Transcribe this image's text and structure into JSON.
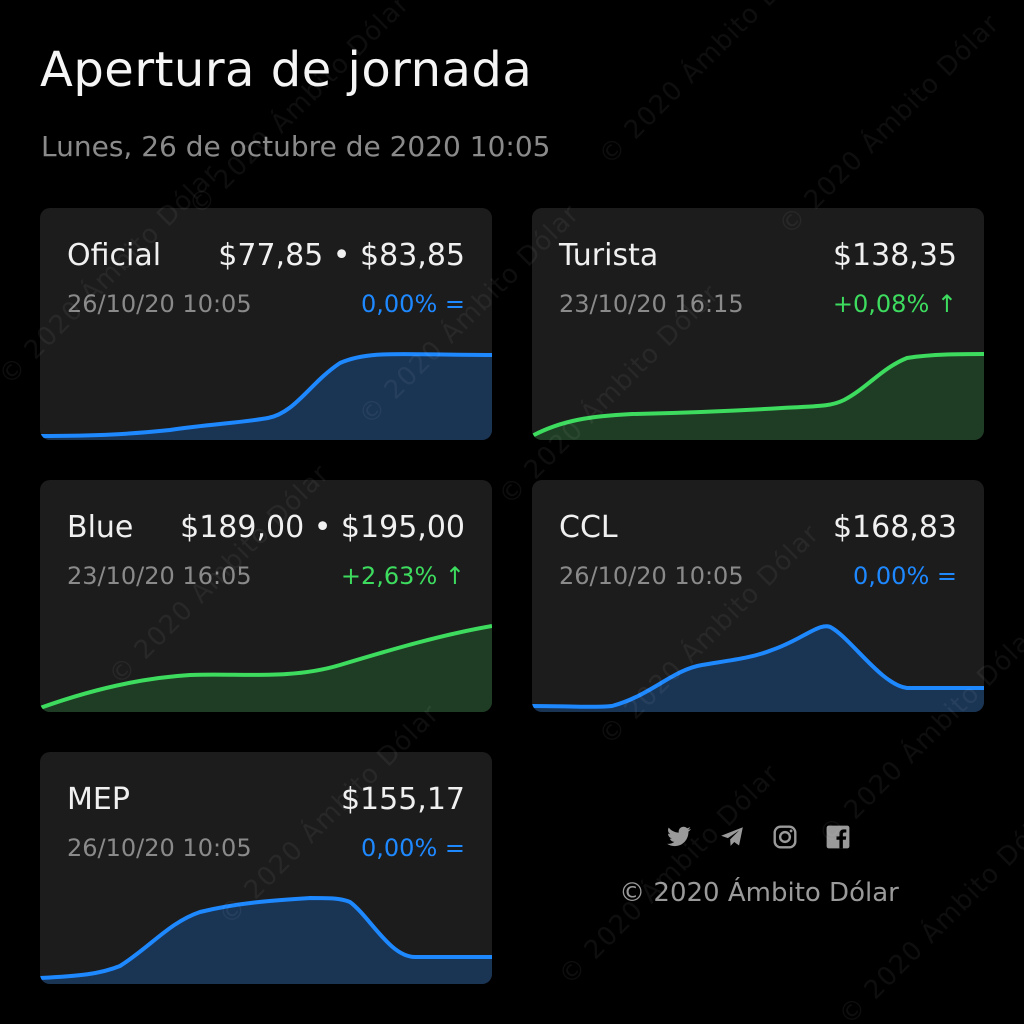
{
  "header": {
    "title": "Apertura de jornada",
    "date": "Lunes, 26 de octubre de 2020 10:05"
  },
  "colors": {
    "background": "#000000",
    "card": "#1c1c1c",
    "blue": "#1e88ff",
    "blue_fill": "#1a3454",
    "green": "#3ddc5f",
    "green_fill": "#1f3d24",
    "muted_text": "#8a8a8a"
  },
  "cards": [
    {
      "id": "oficial",
      "name": "Oficial",
      "price": "$77,85 • $83,85",
      "time": "26/10/20 10:05",
      "change": "0,00% =",
      "trend": "flat"
    },
    {
      "id": "turista",
      "name": "Turista",
      "price": "$138,35",
      "time": "23/10/20 16:15",
      "change": "+0,08% ↑",
      "trend": "up"
    },
    {
      "id": "blue",
      "name": "Blue",
      "price": "$189,00 • $195,00",
      "time": "23/10/20 16:05",
      "change": "+2,63% ↑",
      "trend": "up"
    },
    {
      "id": "ccl",
      "name": "CCL",
      "price": "$168,83",
      "time": "26/10/20 10:05",
      "change": "0,00% =",
      "trend": "flat"
    },
    {
      "id": "mep",
      "name": "MEP",
      "price": "$155,17",
      "time": "26/10/20 10:05",
      "change": "0,00% =",
      "trend": "flat"
    }
  ],
  "footer": {
    "icons": [
      "twitter-icon",
      "telegram-icon",
      "instagram-icon",
      "facebook-icon"
    ],
    "copyright": "© 2020 Ámbito Dólar"
  },
  "watermark": "© 2020 Ámbito Dólar"
}
